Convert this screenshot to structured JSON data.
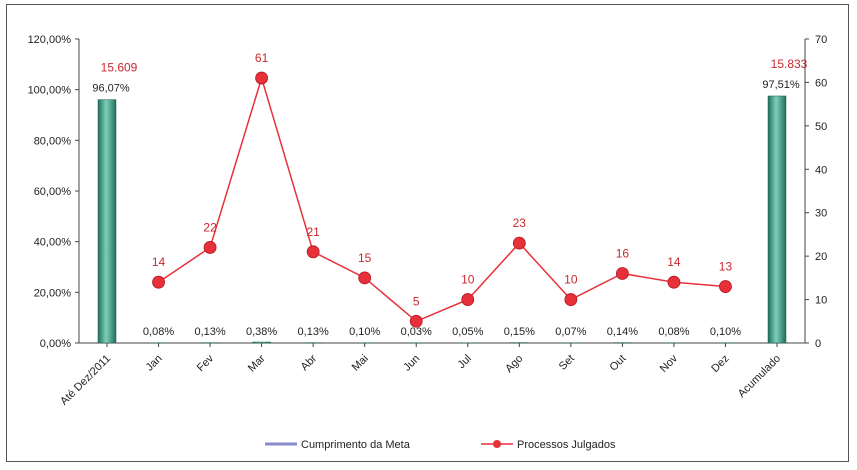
{
  "chart_data": {
    "type": "bar+line",
    "categories": [
      "Até Dez/2011",
      "Jan",
      "Fev",
      "Mar",
      "Abr",
      "Mai",
      "Jun",
      "Jul",
      "Ago",
      "Set",
      "Out",
      "Nov",
      "Dez",
      "Acumulado"
    ],
    "left_axis": {
      "ylim": [
        0,
        120
      ],
      "ticks": [
        "0,00%",
        "20,00%",
        "40,00%",
        "60,00%",
        "80,00%",
        "100,00%",
        "120,00%"
      ],
      "tick_values": [
        0,
        20,
        40,
        60,
        80,
        100,
        120
      ]
    },
    "right_axis": {
      "ylim": [
        0,
        70
      ],
      "ticks": [
        "0",
        "10",
        "20",
        "30",
        "40",
        "50",
        "60",
        "70"
      ],
      "tick_values": [
        0,
        10,
        20,
        30,
        40,
        50,
        60,
        70
      ]
    },
    "series": [
      {
        "name": "Cumprimento da Meta",
        "type": "bar",
        "axis": "left",
        "color": "#2e8b7a",
        "values": [
          96.07,
          0.08,
          0.13,
          0.38,
          0.13,
          0.1,
          0.03,
          0.05,
          0.15,
          0.07,
          0.14,
          0.08,
          0.1,
          97.51
        ],
        "labels": [
          "96,07%",
          "0,08%",
          "0,13%",
          "0,38%",
          "0,13%",
          "0,10%",
          "0,03%",
          "0,05%",
          "0,15%",
          "0,07%",
          "0,14%",
          "0,08%",
          "0,10%",
          "97,51%"
        ]
      },
      {
        "name": "Processos Julgados",
        "type": "line",
        "axis": "right",
        "color": "#e8303a",
        "x": [
          "Jan",
          "Fev",
          "Mar",
          "Abr",
          "Mai",
          "Jun",
          "Jul",
          "Ago",
          "Set",
          "Out",
          "Nov",
          "Dez"
        ],
        "values": [
          14,
          22,
          61,
          21,
          15,
          5,
          10,
          23,
          10,
          16,
          14,
          13
        ],
        "labels": [
          "14",
          "22",
          "61",
          "21",
          "15",
          "5",
          "10",
          "23",
          "10",
          "16",
          "14",
          "13"
        ]
      }
    ],
    "bar_totals": [
      {
        "category": "Até Dez/2011",
        "label": "15.609"
      },
      {
        "category": "Acumulado",
        "label": "15.833"
      }
    ],
    "legend": {
      "position": "bottom",
      "items": [
        {
          "label": "Cumprimento da Meta",
          "color": "#8888cc"
        },
        {
          "label": "Processos Julgados",
          "color": "#e8303a"
        }
      ]
    },
    "grid": false
  }
}
